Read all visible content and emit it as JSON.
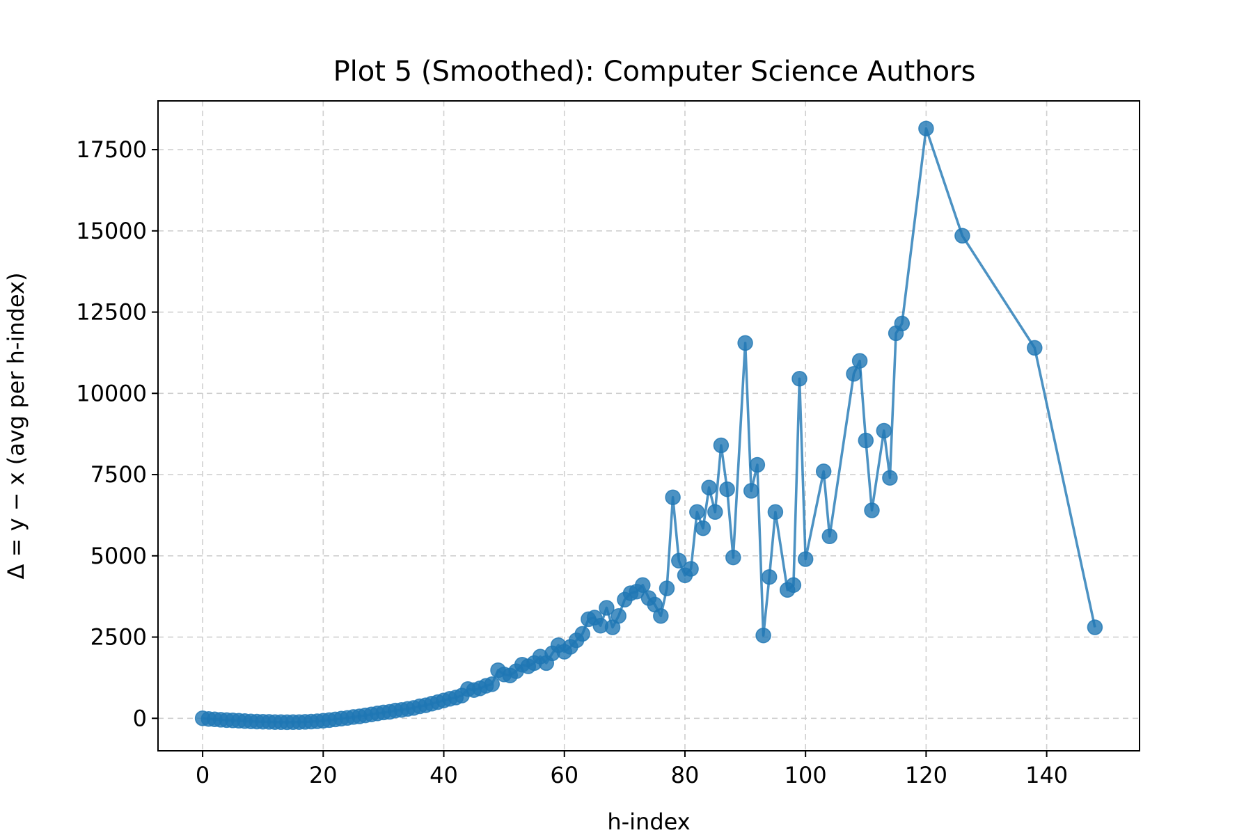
{
  "chart_data": {
    "type": "line",
    "title": "Plot 5 (Smoothed): Computer Science Authors",
    "xlabel": "h-index",
    "ylabel": "Δ = y − x (avg per h-index)",
    "xlim": [
      -7.4,
      155.4
    ],
    "ylim": [
      -1000,
      19000
    ],
    "xticks": [
      0,
      20,
      40,
      60,
      80,
      100,
      120,
      140
    ],
    "yticks": [
      0,
      2500,
      5000,
      7500,
      10000,
      12500,
      15000,
      17500
    ],
    "grid": true,
    "marker": "circle",
    "color": "#1f77b4",
    "series": [
      {
        "x": [
          0,
          1,
          2,
          3,
          4,
          5,
          6,
          7,
          8,
          9,
          10,
          11,
          12,
          13,
          14,
          15,
          16,
          17,
          18,
          19,
          20,
          21,
          22,
          23,
          24,
          25,
          26,
          27,
          28,
          29,
          30,
          31,
          32,
          33,
          34,
          35,
          36,
          37,
          38,
          39,
          40,
          41,
          42,
          43,
          44,
          45,
          46,
          47,
          48,
          49,
          50,
          51,
          52,
          53,
          54,
          55,
          56,
          57,
          58,
          59,
          60,
          61,
          62,
          63,
          64,
          65,
          66,
          67,
          68,
          69,
          70,
          71,
          72,
          73,
          74,
          75,
          76,
          77,
          78,
          79,
          80,
          81,
          82,
          83,
          84,
          85,
          86,
          87,
          88,
          90,
          91,
          92,
          93,
          94,
          95,
          97,
          98,
          99,
          100,
          103,
          104,
          108,
          109,
          110,
          111,
          113,
          114,
          115,
          116,
          120,
          126,
          138,
          148
        ],
        "y": [
          0,
          -20,
          -30,
          -45,
          -55,
          -65,
          -75,
          -85,
          -95,
          -100,
          -105,
          -110,
          -115,
          -118,
          -120,
          -118,
          -115,
          -110,
          -100,
          -90,
          -75,
          -55,
          -35,
          -10,
          10,
          40,
          60,
          90,
          120,
          150,
          180,
          200,
          240,
          260,
          290,
          320,
          370,
          400,
          450,
          500,
          550,
          600,
          640,
          700,
          900,
          870,
          920,
          1000,
          1050,
          1480,
          1350,
          1320,
          1450,
          1650,
          1600,
          1700,
          1900,
          1700,
          2000,
          2250,
          2050,
          2200,
          2400,
          2600,
          3050,
          3100,
          2850,
          3400,
          2800,
          3150,
          3650,
          3850,
          3900,
          4100,
          3700,
          3500,
          3150,
          4000,
          6800,
          4850,
          4400,
          4600,
          6350,
          5850,
          7100,
          6350,
          8400,
          7050,
          4950,
          11550,
          7000,
          7800,
          2550,
          4350,
          6350,
          3950,
          4100,
          10450,
          4900,
          7600,
          5600,
          10600,
          11000,
          8550,
          6400,
          8850,
          7400,
          11850,
          12150,
          18150,
          14850,
          11400,
          2800
        ]
      }
    ]
  }
}
